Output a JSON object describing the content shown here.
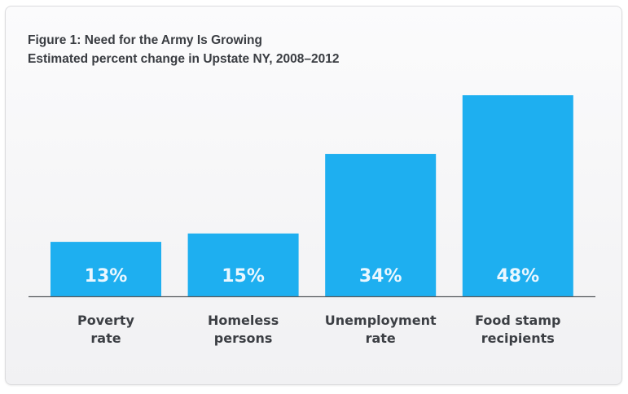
{
  "chart_data": {
    "type": "bar",
    "title": "Figure 1: Need for the Army Is Growing",
    "subtitle": "Estimated percent change in Upstate NY, 2008–2012",
    "categories": [
      [
        "Poverty",
        "rate"
      ],
      [
        "Homeless",
        "persons"
      ],
      [
        "Unemployment",
        "rate"
      ],
      [
        "Food stamp",
        "recipients"
      ]
    ],
    "values": [
      13,
      15,
      34,
      48
    ],
    "value_labels": [
      "13%",
      "15%",
      "34%",
      "48%"
    ],
    "unit": "%",
    "xlabel": "",
    "ylabel": "",
    "ylim": [
      0,
      48
    ],
    "grid": false,
    "legend": "none",
    "colors": {
      "bar": "#1eaff0",
      "bar_label": "#eaf7ff",
      "axis": "#55585c",
      "text": "#3a3d42"
    }
  }
}
